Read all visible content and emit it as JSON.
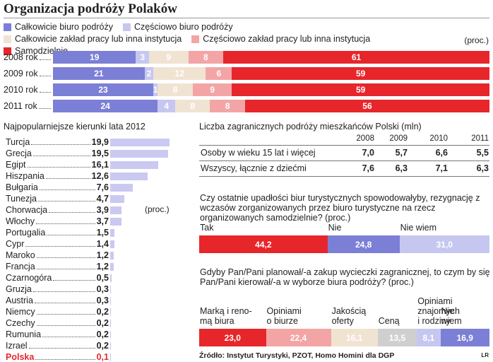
{
  "chart_data": [
    {
      "type": "bar",
      "stacked": true,
      "orientation": "horizontal",
      "title": "Organizacja podróży Polaków",
      "unit": "(proc.)",
      "categories": [
        "2008 rok",
        "2009 rok",
        "2010 rok",
        "2011 rok"
      ],
      "series": [
        {
          "name": "Całkowicie biuro podróży",
          "color": "#7c7fd6",
          "values": [
            19,
            21,
            23,
            24
          ]
        },
        {
          "name": "Częściowo biuro podróży",
          "color": "#c6c7f1",
          "values": [
            3,
            2,
            1,
            4
          ]
        },
        {
          "name": "Całkowicie zakład pracy lub inna instytucja",
          "color": "#f1e3d2",
          "values": [
            9,
            12,
            8,
            8
          ]
        },
        {
          "name": "Częściowo zakład pracy lub inna instytucja",
          "color": "#f3a5a6",
          "values": [
            8,
            6,
            9,
            8
          ]
        },
        {
          "name": "Samodzielnie",
          "color": "#e7262b",
          "values": [
            61,
            59,
            59,
            56
          ]
        }
      ]
    },
    {
      "type": "bar",
      "orientation": "horizontal",
      "title": "Najpopularniejsze kierunki lata 2012",
      "unit": "(proc.)",
      "color": "#c9c9f1",
      "categories": [
        "Turcja",
        "Grecja",
        "Egipt",
        "Hiszpania",
        "Bułgaria",
        "Tunezja",
        "Chorwacja",
        "Włochy",
        "Portugalia",
        "Cypr",
        "Maroko",
        "Francja",
        "Czarnogóra",
        "Gruzja",
        "Austria",
        "Niemcy",
        "Czechy",
        "Rumunia",
        "Izrael",
        "Polska"
      ],
      "values": [
        19.9,
        19.5,
        16.1,
        12.6,
        7.6,
        4.7,
        3.9,
        3.7,
        1.5,
        1.4,
        1.2,
        1.2,
        0.5,
        0.3,
        0.3,
        0.2,
        0.2,
        0.2,
        0.2,
        0.1
      ],
      "value_labels": [
        "19,9",
        "19,5",
        "16,1",
        "12,6",
        "7,6",
        "4,7",
        "3,9",
        "3,7",
        "1,5",
        "1,4",
        "1,2",
        "1,2",
        "0,5",
        "0,3",
        "0,3",
        "0,2",
        "0,2",
        "0,2",
        "0,2",
        "0,1"
      ]
    },
    {
      "type": "bar",
      "stacked": true,
      "orientation": "horizontal",
      "title": "Czy ostatnie upadłości biur turystycznych spowodowałyby, rezygnację z wczasów zorganizowanych przez biuro turystyczne na rzecz organizowanych samodzielnie? (proc.)",
      "series": [
        {
          "name": "Tak",
          "color": "#e7262b",
          "values": [
            44.2
          ],
          "value_labels": [
            "44,2"
          ]
        },
        {
          "name": "Nie",
          "color": "#7c7fd6",
          "values": [
            24.8
          ],
          "value_labels": [
            "24,8"
          ]
        },
        {
          "name": "Nie wiem",
          "color": "#c6c7f1",
          "values": [
            31.0
          ],
          "value_labels": [
            "31,0"
          ]
        }
      ]
    },
    {
      "type": "bar",
      "stacked": true,
      "orientation": "horizontal",
      "title": "Gdyby Pan/Pani planował/-a zakup wycieczki zagranicznej, to czym by się Pan/Pani kierował/-a w wyborze biura podróży? (proc.)",
      "series": [
        {
          "name": "Marką i reno-\nmą biura",
          "color": "#e7262b",
          "values": [
            23.0
          ],
          "value_labels": [
            "23,0"
          ]
        },
        {
          "name": "Opiniami\no biurze",
          "color": "#f3a5a6",
          "values": [
            22.4
          ],
          "value_labels": [
            "22,4"
          ]
        },
        {
          "name": "Jakością\noferty",
          "color": "#f1e3d2",
          "values": [
            16.1
          ],
          "value_labels": [
            "16,1"
          ]
        },
        {
          "name": "Ceną",
          "color": "#cfcfcf",
          "values": [
            13.5
          ],
          "value_labels": [
            "13,5"
          ]
        },
        {
          "name": "Opiniami\nznajomych\ni rodziny",
          "color": "#c6c7f1",
          "values": [
            8.1
          ],
          "value_labels": [
            "8,1"
          ]
        },
        {
          "name": "Nie\nwiem",
          "color": "#7c7fd6",
          "values": [
            16.9
          ],
          "value_labels": [
            "16,9"
          ]
        }
      ]
    }
  ],
  "table": {
    "title": "Liczba zagranicznych podróży mieszkańców Polski (mln)",
    "columns": [
      "2008",
      "2009",
      "2010",
      "2011"
    ],
    "rows": [
      [
        "Osoby w wieku 15 lat i więcej",
        "7,0",
        "5,7",
        "6,6",
        "5,5"
      ],
      [
        "Wszyscy, łącznie z dziećmi",
        "7,6",
        "6,3",
        "7,1",
        "6,3"
      ]
    ]
  },
  "source": "Źródło: Instytut Turystyki, PZOT, Homo Homini dla DGP",
  "credit": "LR"
}
